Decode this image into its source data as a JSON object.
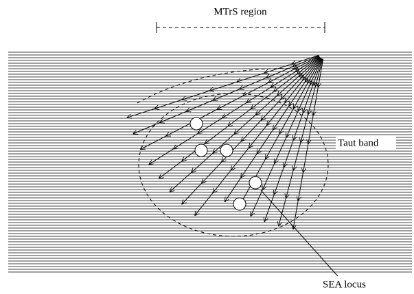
{
  "labels": {
    "region": "MTrS region",
    "band": "Taut band",
    "locus": "SEA locus"
  }
}
